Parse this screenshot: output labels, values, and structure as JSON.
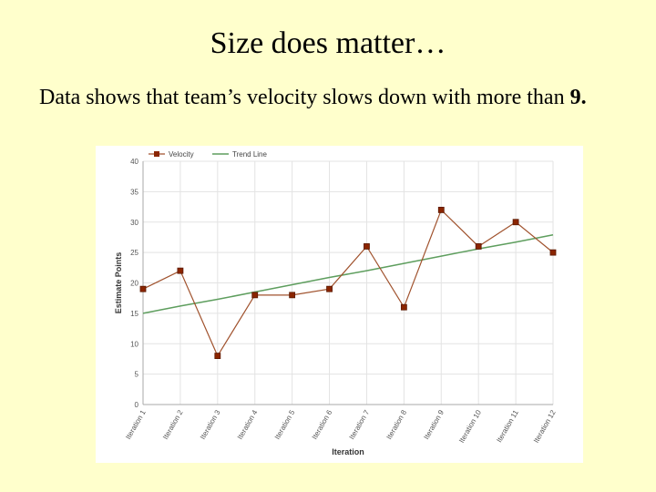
{
  "slide": {
    "title": "Size does matter…",
    "body_prefix": "Data shows that team’s velocity slows down with more than ",
    "body_bold": "9."
  },
  "colors": {
    "background": "#FFFFCC",
    "velocity": "#A0522D",
    "velocity_marker": "#8B2500",
    "trend": "#5E9E5E",
    "grid": "#E3E3E3"
  },
  "chart_data": {
    "type": "line",
    "title": "",
    "xlabel": "Iteration",
    "ylabel": "Estimate Points",
    "ylim": [
      0,
      40
    ],
    "yticks": [
      0,
      5,
      10,
      15,
      20,
      25,
      30,
      35,
      40
    ],
    "grid": true,
    "legend_position": "top-left",
    "categories": [
      "Iteration 1",
      "Iteration 2",
      "Iteration 3",
      "Iteration 4",
      "Iteration 5",
      "Iteration 6",
      "Iteration 7",
      "Iteration 8",
      "Iteration 9",
      "Iteration 10",
      "Iteration 11",
      "Iteration 12"
    ],
    "series": [
      {
        "name": "Velocity",
        "values": [
          19,
          22,
          8,
          18,
          18,
          19,
          26,
          16,
          32,
          26,
          30,
          25
        ]
      },
      {
        "name": "Trend Line",
        "values": [
          15.0,
          16.2,
          17.3,
          18.5,
          19.7,
          20.9,
          22.0,
          23.2,
          24.4,
          25.6,
          26.7,
          27.9
        ]
      }
    ]
  }
}
